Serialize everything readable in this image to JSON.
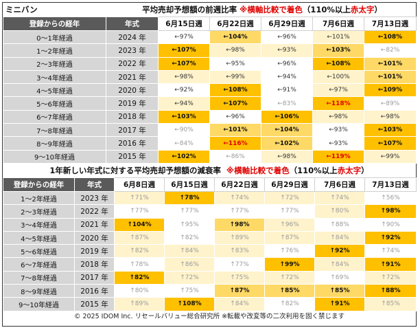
{
  "table1": {
    "corner_label": "ミニバン",
    "title": "平均売却予想額の前週比率",
    "note_prefix": "※横軸比較で着色",
    "note_suffix": "（110%以上",
    "note_red": "赤太字",
    "note_close": "）",
    "headers": [
      "登録からの経年",
      "年式",
      "6月15日週",
      "6月22日週",
      "6月29日週",
      "7月6日週",
      "7月13日週"
    ],
    "rows": [
      {
        "label": "0～1年経過",
        "year": "2024 年",
        "cells": [
          [
            "←97%",
            "lv0"
          ],
          [
            "←104%",
            "lv2"
          ],
          [
            "←96%",
            "lv0"
          ],
          [
            "←101%",
            "lv1"
          ],
          [
            "←108%",
            "lv3"
          ]
        ]
      },
      {
        "label": "1～2年経過",
        "year": "2023 年",
        "cells": [
          [
            "←107%",
            "lv3"
          ],
          [
            "←98%",
            "lv1"
          ],
          [
            "←93%",
            "lv1"
          ],
          [
            "←103%",
            "lv2"
          ],
          [
            "←82%",
            "lvg"
          ]
        ]
      },
      {
        "label": "2～3年経過",
        "year": "2022 年",
        "cells": [
          [
            "←107%",
            "lv3"
          ],
          [
            "←95%",
            "lv0"
          ],
          [
            "←96%",
            "lv0"
          ],
          [
            "←108%",
            "lv3"
          ],
          [
            "←101%",
            "lv2"
          ]
        ]
      },
      {
        "label": "3～4年経過",
        "year": "2021 年",
        "cells": [
          [
            "←98%",
            "lv1"
          ],
          [
            "←99%",
            "lv1"
          ],
          [
            "←94%",
            "lv0"
          ],
          [
            "←100%",
            "lv1"
          ],
          [
            "←101%",
            "lv2"
          ]
        ]
      },
      {
        "label": "4～5年経過",
        "year": "2020 年",
        "cells": [
          [
            "←92%",
            "lv0"
          ],
          [
            "←108%",
            "lv3"
          ],
          [
            "←91%",
            "lv0"
          ],
          [
            "←97%",
            "lv1"
          ],
          [
            "←109%",
            "lv3"
          ]
        ]
      },
      {
        "label": "5～6年経過",
        "year": "2019 年",
        "cells": [
          [
            "←94%",
            "lv1"
          ],
          [
            "←107%",
            "lv3"
          ],
          [
            "←83%",
            "lvg"
          ],
          [
            "←118%",
            "lvr lv3"
          ],
          [
            "←89%",
            "lvg"
          ]
        ]
      },
      {
        "label": "6～7年経過",
        "year": "2018 年",
        "cells": [
          [
            "←103%",
            "lv3"
          ],
          [
            "←96%",
            "lv0"
          ],
          [
            "←106%",
            "lv3"
          ],
          [
            "←98%",
            "lv1"
          ],
          [
            "←98%",
            "lv1"
          ]
        ]
      },
      {
        "label": "7～8年経過",
        "year": "2017 年",
        "cells": [
          [
            "←90%",
            "lvg"
          ],
          [
            "←101%",
            "lv2"
          ],
          [
            "←104%",
            "lv2"
          ],
          [
            "←93%",
            "lv0"
          ],
          [
            "←103%",
            "lv3"
          ]
        ]
      },
      {
        "label": "8～9年経過",
        "year": "2016 年",
        "cells": [
          [
            "←84%",
            "lvg"
          ],
          [
            "←116%",
            "lvr lv3"
          ],
          [
            "←102%",
            "lv2"
          ],
          [
            "←93%",
            "lv0"
          ],
          [
            "←107%",
            "lv3"
          ]
        ]
      },
      {
        "label": "9～10年経過",
        "year": "2015 年",
        "cells": [
          [
            "←102%",
            "lv3"
          ],
          [
            "←86%",
            "lvg"
          ],
          [
            "←98%",
            "lv1"
          ],
          [
            "←119%",
            "lvr lv3"
          ],
          [
            "←99%",
            "lv1"
          ]
        ]
      }
    ]
  },
  "table2": {
    "title": "1年新しい年式に対する平均売却予想額の減衰率",
    "note_prefix": "※横軸比較で着色",
    "note_suffix": "（110%以上",
    "note_red": "赤太字",
    "note_close": "）",
    "headers": [
      "登録からの経年",
      "年式",
      "6月8日週",
      "6月15日週",
      "6月22日週",
      "6月29日週",
      "7月6日週",
      "7月13日週"
    ],
    "rows": [
      {
        "label": "1～2年経過",
        "year": "2023 年",
        "cells": [
          [
            "↑71%",
            "lv1"
          ],
          [
            "↑78%",
            "lv3"
          ],
          [
            "↑74%",
            "lv1"
          ],
          [
            "↑72%",
            "lv1"
          ],
          [
            "↑74%",
            "lv1"
          ],
          [
            "↑56%",
            "lv0"
          ]
        ]
      },
      {
        "label": "2～3年経過",
        "year": "2022 年",
        "cells": [
          [
            "↑77%",
            "lv0"
          ],
          [
            "↑77%",
            "lv0"
          ],
          [
            "↑77%",
            "lv0"
          ],
          [
            "↑77%",
            "lv0"
          ],
          [
            "↑80%",
            "lv1"
          ],
          [
            "↑98%",
            "lv3"
          ]
        ]
      },
      {
        "label": "3～4年経過",
        "year": "2021 年",
        "cells": [
          [
            "↑104%",
            "lv3"
          ],
          [
            "↑95%",
            "lv0"
          ],
          [
            "↑98%",
            "lv2"
          ],
          [
            "↑96%",
            "lv1"
          ],
          [
            "↑88%",
            "lv0"
          ],
          [
            "↑90%",
            "lv0"
          ]
        ]
      },
      {
        "label": "4～5年経過",
        "year": "2020 年",
        "cells": [
          [
            "↑87%",
            "lv1"
          ],
          [
            "↑82%",
            "lv0"
          ],
          [
            "↑89%",
            "lv1"
          ],
          [
            "↑87%",
            "lv1"
          ],
          [
            "↑84%",
            "lv1"
          ],
          [
            "↑92%",
            "lv3"
          ]
        ]
      },
      {
        "label": "5～6年経過",
        "year": "2019 年",
        "cells": [
          [
            "↑82%",
            "lv1"
          ],
          [
            "↑84%",
            "lv1"
          ],
          [
            "↑83%",
            "lv1"
          ],
          [
            "↑76%",
            "lv0"
          ],
          [
            "↑92%",
            "lv3"
          ],
          [
            "↑74%",
            "lv0"
          ]
        ]
      },
      {
        "label": "6～7年経過",
        "year": "2018 年",
        "cells": [
          [
            "↑78%",
            "lv0"
          ],
          [
            "↑86%",
            "lv1"
          ],
          [
            "↑77%",
            "lv0"
          ],
          [
            "↑99%",
            "lv3"
          ],
          [
            "↑84%",
            "lv1"
          ],
          [
            "↑91%",
            "lv3"
          ]
        ]
      },
      {
        "label": "7～8年経過",
        "year": "2017 年",
        "cells": [
          [
            "↑82%",
            "lv3"
          ],
          [
            "↑72%",
            "lv1"
          ],
          [
            "↑75%",
            "lv1"
          ],
          [
            "↑72%",
            "lv1"
          ],
          [
            "↑69%",
            "lv0"
          ],
          [
            "↑72%",
            "lv1"
          ]
        ]
      },
      {
        "label": "8～9年経過",
        "year": "2016 年",
        "cells": [
          [
            "↑80%",
            "lv0"
          ],
          [
            "↑75%",
            "lv0"
          ],
          [
            "↑87%",
            "lv2"
          ],
          [
            "↑85%",
            "lv2"
          ],
          [
            "↑85%",
            "lv2"
          ],
          [
            "↑88%",
            "lv3"
          ]
        ]
      },
      {
        "label": "9～10年経過",
        "year": "2015 年",
        "cells": [
          [
            "↑89%",
            "lv1"
          ],
          [
            "↑108%",
            "lv3"
          ],
          [
            "↑84%",
            "lv1"
          ],
          [
            "↑82%",
            "lv0"
          ],
          [
            "↑91%",
            "lv3"
          ],
          [
            "↑85%",
            "lv1"
          ]
        ]
      }
    ]
  },
  "footer": "© 2025 IDOM Inc. リセールバリュー総合研究所 ※転載や改変等の二次利用を固く禁じます"
}
